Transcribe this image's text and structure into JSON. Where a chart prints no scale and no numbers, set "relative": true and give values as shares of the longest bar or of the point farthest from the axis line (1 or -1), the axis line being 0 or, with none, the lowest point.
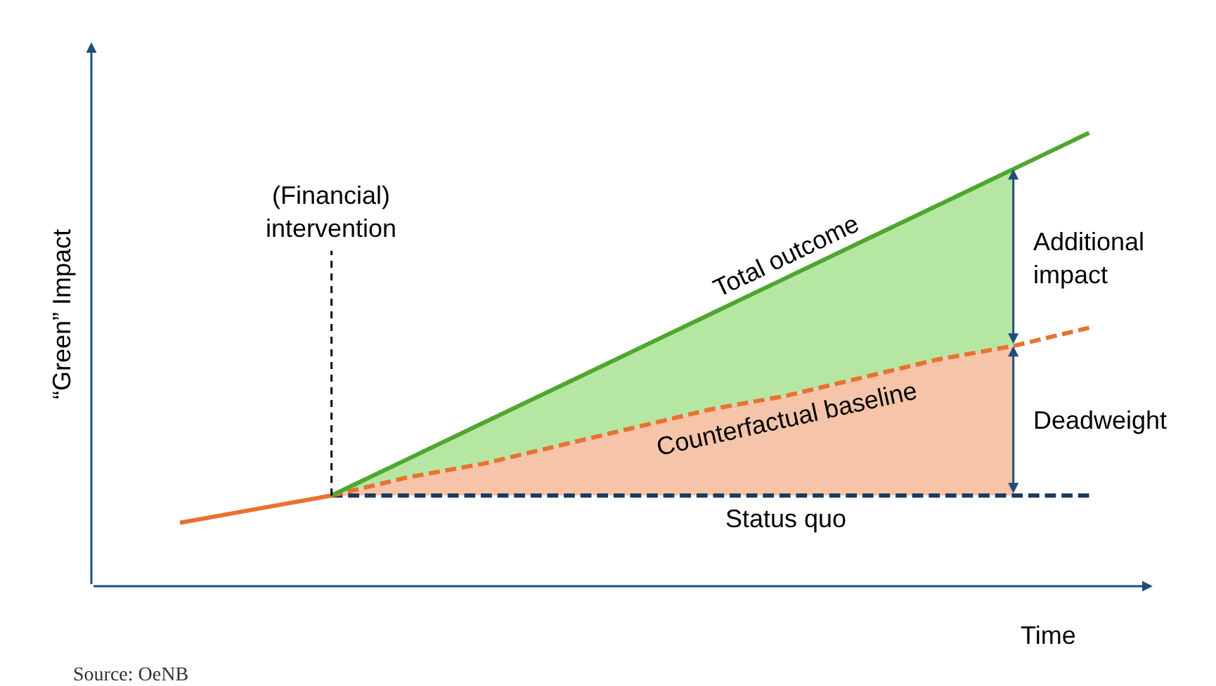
{
  "chart_data": {
    "type": "line",
    "relative": true,
    "xlabel": "Time",
    "ylabel": "“Green” Impact",
    "categories": [
      null,
      null,
      null,
      null,
      null,
      null,
      null,
      null,
      null,
      null,
      null,
      null,
      null
    ],
    "series": [
      {
        "name": "Additional impact",
        "type": "area",
        "color": "#b5e6a2",
        "values": [
          null,
          null,
          0.2,
          0.28,
          0.36,
          0.44,
          0.52,
          0.6,
          0.68,
          0.76,
          0.84,
          0.92,
          null
        ]
      },
      {
        "name": "Deadweight",
        "type": "area",
        "color": "#f5c4a9",
        "values": [
          null,
          null,
          0.2,
          0.24,
          0.27,
          0.31,
          0.35,
          0.39,
          0.42,
          0.46,
          0.5,
          0.53,
          null
        ]
      },
      {
        "color": "#e97132",
        "values": [
          0.14,
          0.17,
          0.2,
          null,
          null,
          null,
          null,
          null,
          null,
          null,
          null,
          null,
          null
        ]
      },
      {
        "name": "Status quo",
        "color": "#1f3b5a",
        "line_style": "dashed",
        "values": [
          null,
          null,
          0.2,
          0.2,
          0.2,
          0.2,
          0.2,
          0.2,
          0.2,
          0.2,
          0.2,
          0.2,
          0.2
        ]
      },
      {
        "name": "Counterfactual baseline",
        "color": "#e97132",
        "line_style": "dashed",
        "values": [
          null,
          null,
          0.2,
          0.24,
          0.27,
          0.31,
          0.35,
          0.39,
          0.42,
          0.46,
          0.5,
          0.53,
          0.57
        ]
      },
      {
        "name": "Total outcome",
        "color": "#4ea72e",
        "values": [
          null,
          null,
          0.2,
          0.28,
          0.36,
          0.44,
          0.52,
          0.6,
          0.68,
          0.76,
          0.84,
          0.92,
          1.0
        ]
      }
    ],
    "annotations": [
      "(Financial) intervention",
      "Source: OeNB"
    ],
    "marker": "none",
    "line_style": "solid"
  }
}
